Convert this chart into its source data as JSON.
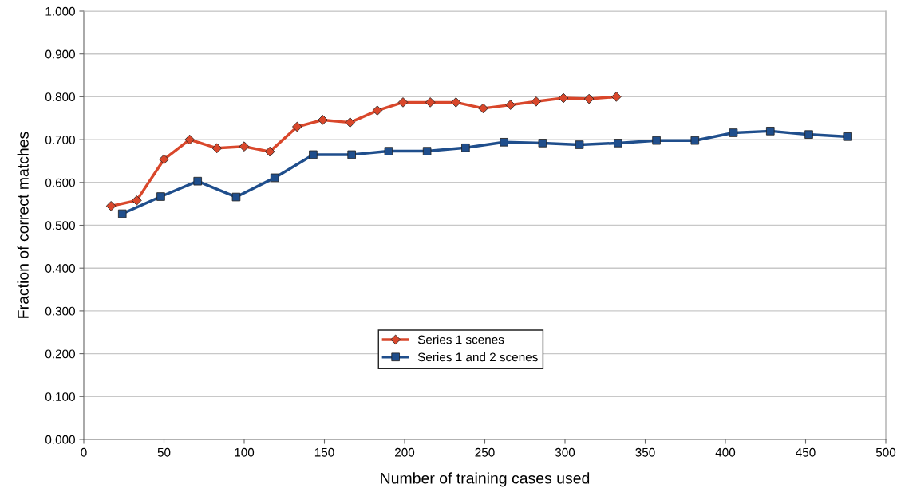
{
  "chart_data": {
    "type": "line",
    "xlabel": "Number of training cases used",
    "ylabel": "Fraction of correct matches",
    "xlim": [
      0,
      500
    ],
    "xticks": [
      0,
      50,
      100,
      150,
      200,
      250,
      300,
      350,
      400,
      450,
      500
    ],
    "ylim": [
      0,
      1
    ],
    "yticks": [
      {
        "value": 0,
        "label": "0.000"
      },
      {
        "value": 0.1,
        "label": "0.100"
      },
      {
        "value": 0.2,
        "label": "0.200"
      },
      {
        "value": 0.3,
        "label": "0.300"
      },
      {
        "value": 0.4,
        "label": "0.400"
      },
      {
        "value": 0.5,
        "label": "0.500"
      },
      {
        "value": 0.6,
        "label": "0.600"
      },
      {
        "value": 0.7,
        "label": "0.700"
      },
      {
        "value": 0.8,
        "label": "0.800"
      },
      {
        "value": 0.9,
        "label": "0.900"
      },
      {
        "value": 1,
        "label": "1.000"
      }
    ],
    "grid": "y",
    "legend": "bottom",
    "line_style": "solid",
    "series": [
      {
        "name": "Series 1 scenes",
        "color": "#d9472b",
        "marker": "diamond",
        "x": [
          17,
          33,
          50,
          66,
          83,
          100,
          116,
          133,
          149,
          166,
          183,
          199,
          216,
          232,
          249,
          266,
          282,
          299,
          315,
          332
        ],
        "values": [
          0.545,
          0.558,
          0.654,
          0.7,
          0.68,
          0.684,
          0.672,
          0.73,
          0.746,
          0.74,
          0.768,
          0.787,
          0.787,
          0.787,
          0.773,
          0.781,
          0.789,
          0.797,
          0.795,
          0.8
        ]
      },
      {
        "name": "Series 1 and 2 scenes",
        "color": "#1f4e8c",
        "marker": "square",
        "x": [
          24,
          48,
          71,
          95,
          119,
          143,
          167,
          190,
          214,
          238,
          262,
          286,
          309,
          333,
          357,
          381,
          405,
          428,
          452,
          476
        ],
        "values": [
          0.527,
          0.567,
          0.603,
          0.566,
          0.611,
          0.665,
          0.665,
          0.673,
          0.673,
          0.681,
          0.694,
          0.692,
          0.688,
          0.692,
          0.698,
          0.698,
          0.716,
          0.72,
          0.712,
          0.707
        ]
      }
    ]
  }
}
